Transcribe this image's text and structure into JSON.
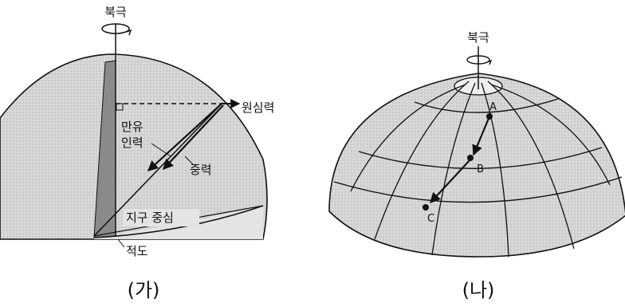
{
  "colors": {
    "sphere_fill": "#d4d4d4",
    "sphere_stroke": "#111111",
    "shadow_fill": "#8a8a8a",
    "background": "#ffffff"
  },
  "left_figure": {
    "north_pole": "북극",
    "centrifugal_force": "원심력",
    "gravitation_line1": "만유",
    "gravitation_line2": "인력",
    "gravity": "중력",
    "earth_center": "지구 중심",
    "equator": "적도",
    "caption": "(가)"
  },
  "right_figure": {
    "north_pole": "북극",
    "point_a": "A",
    "point_b": "B",
    "point_c": "C",
    "caption": "(나)"
  },
  "icons": [
    "rotation-arrow-icon",
    "rotation-arrow-icon"
  ]
}
